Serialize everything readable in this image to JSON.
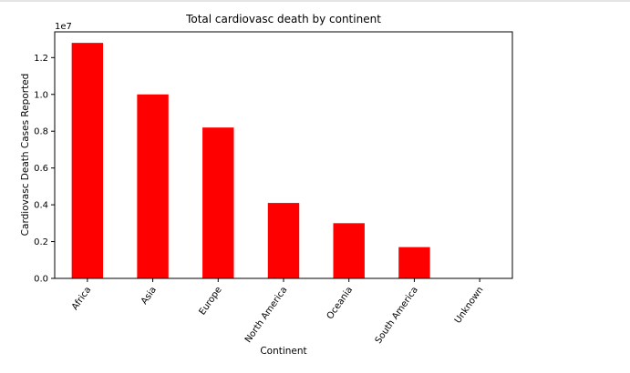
{
  "chart_data": {
    "type": "bar",
    "title": "Total cardiovasc death by continent",
    "xlabel": "Continent",
    "ylabel": "Cardiovasc Death Cases Reported",
    "offset_label": "1e7",
    "categories": [
      "Africa",
      "Asia",
      "Europe",
      "North America",
      "Oceania",
      "South America",
      "Unknown"
    ],
    "values": [
      12800000,
      10000000,
      8200000,
      4100000,
      3000000,
      1700000,
      0
    ],
    "ylim": [
      0,
      13400000
    ],
    "yticks": [
      0,
      2000000,
      4000000,
      6000000,
      8000000,
      10000000,
      12000000
    ],
    "ytick_labels": [
      "0.0",
      "0.2",
      "0.4",
      "0.6",
      "0.8",
      "1.0",
      "1.2"
    ],
    "bar_color": "#ff0000",
    "grid": false,
    "legend": "none"
  }
}
